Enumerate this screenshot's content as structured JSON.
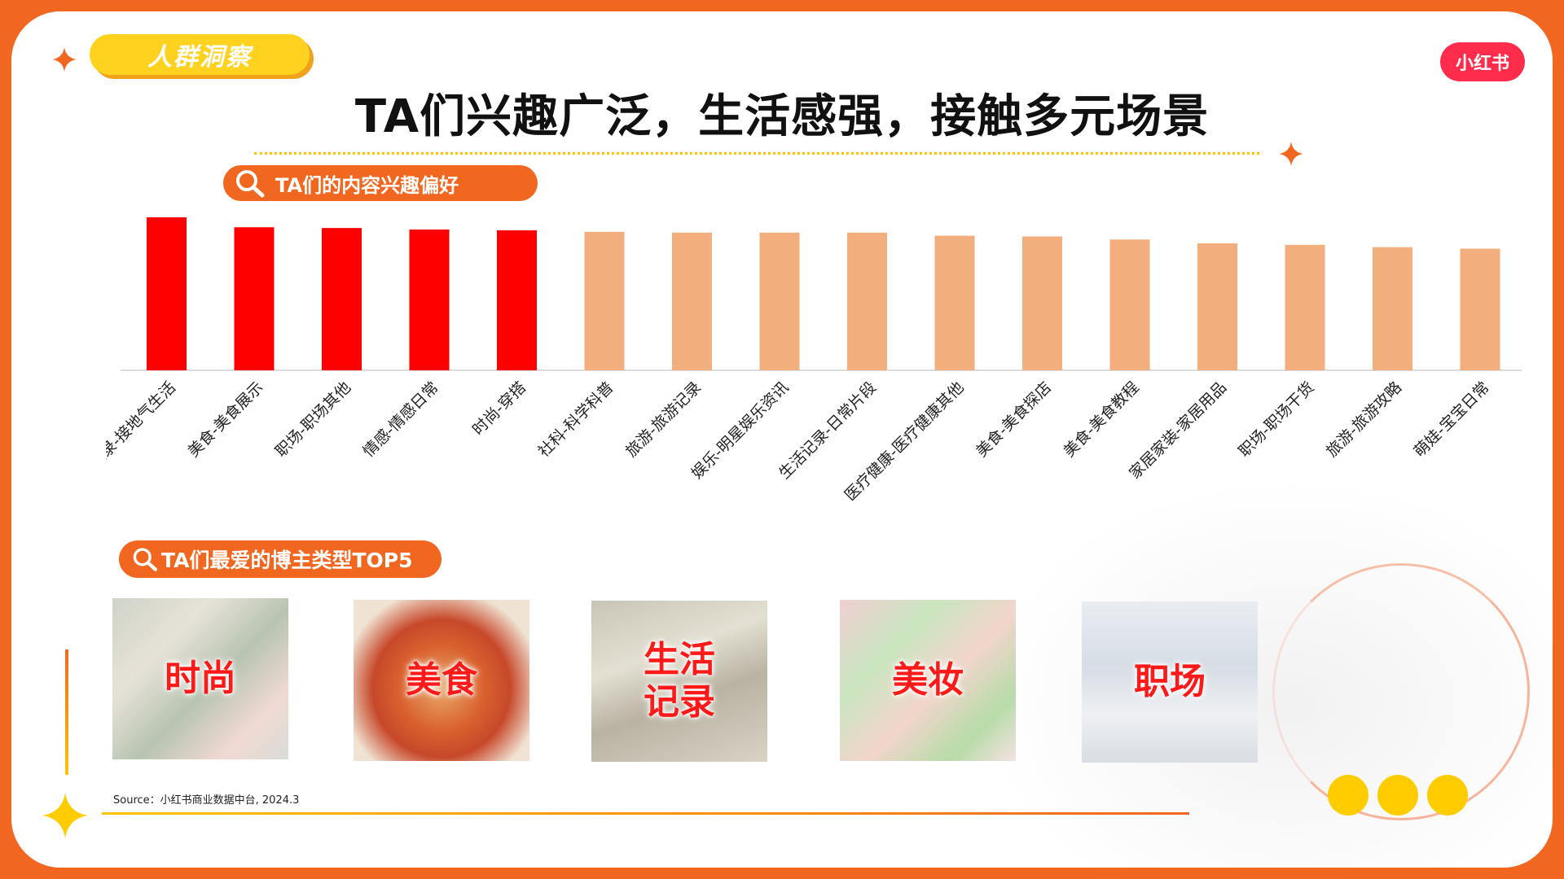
{
  "header": {
    "tag": "人群洞察",
    "logo": "小红书",
    "title": "TA们兴趣广泛，生活感强，接触多元场景"
  },
  "section_interest": {
    "label": "TA们的内容兴趣偏好",
    "icon": "search-icon"
  },
  "section_bloggers": {
    "label": "TA们最爱的博主类型TOP5",
    "icon": "search-icon",
    "cards": [
      {
        "label": "时尚"
      },
      {
        "label": "美食"
      },
      {
        "label": "生活\n记录"
      },
      {
        "label": "美妆"
      },
      {
        "label": "职场"
      }
    ]
  },
  "source": "Source：小红书商业数据中台, 2024.3",
  "colors": {
    "accent": "#f2671f",
    "highlight_bar": "#ff0000",
    "normal_bar": "#f3ae7e",
    "yellow": "#ffcc00",
    "logo_red": "#ff2d4b"
  },
  "chart_data": {
    "type": "bar",
    "categories": [
      "生活记录-接地气生活",
      "美食-美食展示",
      "职场-职场其他",
      "情感-情感日常",
      "时尚-穿搭",
      "社科-科学科普",
      "旅游-旅游记录",
      "娱乐-明星娱乐资讯",
      "生活记录-日常片段",
      "医疗健康-医疗健康其他",
      "美食-美食探店",
      "美食-美食教程",
      "家居家装-家居用品",
      "职场-职场干货",
      "旅游-旅游攻略",
      "萌娃-宝宝日常"
    ],
    "values": [
      100,
      93.5,
      93,
      92,
      91.5,
      90.5,
      90,
      90,
      90,
      88,
      87.5,
      85.5,
      83,
      82,
      80.5,
      79.5
    ],
    "highlighted_count": 5,
    "title": "",
    "xlabel": "",
    "ylabel": "",
    "ylim": [
      0,
      100
    ],
    "grid": false,
    "legend": "none"
  }
}
